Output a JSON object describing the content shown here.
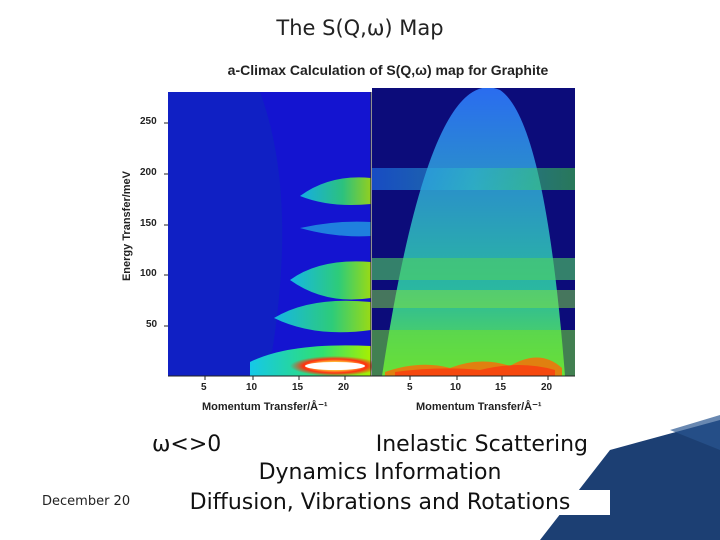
{
  "slide": {
    "title": "The S(Q,ω) Map",
    "date": "December 20"
  },
  "figure": {
    "title": "a-Climax Calculation of S(Q,ω) map for Graphite",
    "ylabel": "Energy Transfer/meV",
    "xlabel_left": "Momentum Transfer/Å⁻¹",
    "xlabel_right": "Momentum Transfer/Å⁻¹",
    "y_ticks": [
      "250",
      "200",
      "150",
      "100",
      "50"
    ],
    "x_ticks_left": [
      "5",
      "10",
      "15",
      "20"
    ],
    "x_ticks_right": [
      "5",
      "10",
      "15",
      "20"
    ]
  },
  "caption": {
    "omega": "ω<>0",
    "inelastic": "Inelastic Scattering",
    "line2": "Dynamics Information",
    "line3": "Diffusion, Vibrations and Rotations"
  },
  "colors": {
    "accent": "#1c3f73",
    "map_bg": "#1010c8"
  }
}
